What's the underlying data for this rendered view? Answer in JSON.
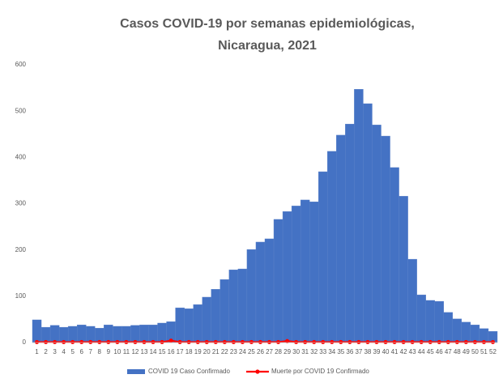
{
  "chart_data": {
    "type": "bar",
    "title": [
      "Casos COVID-19 por semanas epidemiológicas,",
      "Nicaragua, 2021"
    ],
    "categories": [
      "1",
      "2",
      "3",
      "4",
      "5",
      "6",
      "7",
      "8",
      "9",
      "10",
      "11",
      "12",
      "13",
      "14",
      "15",
      "16",
      "17",
      "18",
      "19",
      "20",
      "21",
      "22",
      "23",
      "24",
      "25",
      "26",
      "27",
      "28",
      "29",
      "30",
      "31",
      "32",
      "33",
      "34",
      "35",
      "36",
      "37",
      "38",
      "39",
      "40",
      "41",
      "42",
      "43",
      "44",
      "45",
      "46",
      "47",
      "48",
      "49",
      "50",
      "51",
      "52"
    ],
    "series": [
      {
        "name": "COVID 19 Caso Confirmado",
        "type": "bar",
        "color": "#4472c4",
        "values": [
          49,
          33,
          37,
          33,
          35,
          38,
          35,
          31,
          38,
          35,
          35,
          37,
          38,
          38,
          42,
          45,
          75,
          73,
          82,
          98,
          115,
          136,
          157,
          159,
          201,
          217,
          224,
          266,
          283,
          295,
          308,
          304,
          369,
          413,
          448,
          472,
          547,
          516,
          470,
          446,
          378,
          316,
          180,
          103,
          91,
          89,
          65,
          51,
          44,
          38,
          30,
          24
        ]
      },
      {
        "name": "Muerte por COVID 19 Confirmado",
        "type": "line",
        "color": "#ff0000",
        "values": [
          1,
          1,
          1,
          1,
          1,
          1,
          1,
          1,
          1,
          1,
          1,
          1,
          1,
          1,
          1,
          4,
          1,
          1,
          1,
          1,
          1,
          1,
          1,
          1,
          1,
          1,
          1,
          1,
          3,
          1,
          1,
          1,
          1,
          1,
          1,
          1,
          1,
          1,
          1,
          1,
          1,
          1,
          1,
          1,
          1,
          1,
          1,
          1,
          1,
          1,
          1,
          1
        ]
      }
    ],
    "ylim": [
      0,
      600
    ],
    "yticks": [
      0,
      100,
      200,
      300,
      400,
      500,
      600
    ],
    "grid": false,
    "legend": "bottom"
  }
}
